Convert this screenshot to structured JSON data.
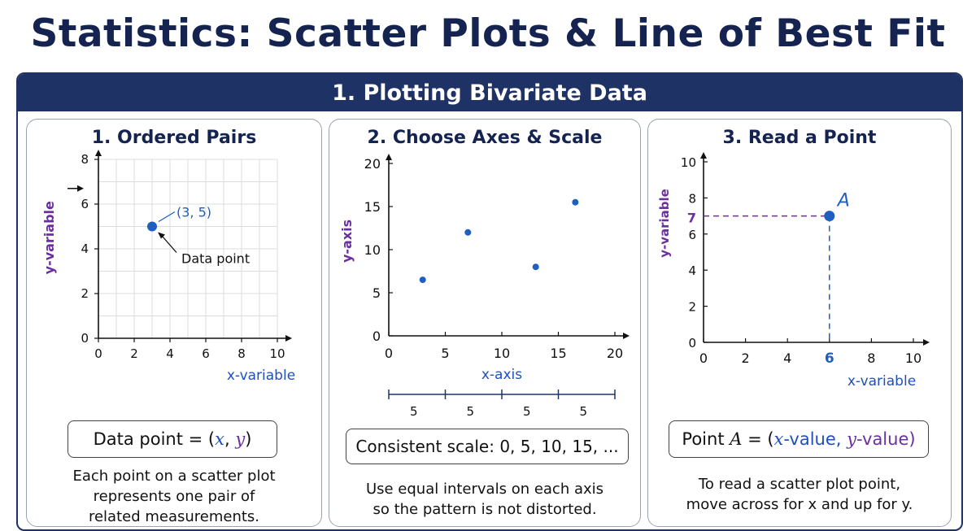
{
  "title": "Statistics: Scatter Plots & Line of Best Fit",
  "section": {
    "title": "1. Plotting Bivariate Data"
  },
  "panels": [
    {
      "title": "1. Ordered Pairs",
      "ylabel": "y-variable",
      "xlabel": "x-variable",
      "x_ticks": [
        "0",
        "2",
        "4",
        "6",
        "8",
        "10"
      ],
      "y_ticks": [
        "0",
        "2",
        "4",
        "6",
        "8"
      ],
      "point": {
        "x": 3,
        "y": 5,
        "label": "(3, 5)"
      },
      "annotation": "Data point",
      "formula": {
        "prefix": "Data point = ",
        "open": "(",
        "x": "x",
        "sep": ", ",
        "y": "y",
        "close": ")"
      },
      "caption_lines": [
        "Each point on a scatter plot",
        "represents one pair of",
        "related measurements."
      ]
    },
    {
      "title": "2. Choose Axes & Scale",
      "ylabel": "y-axis",
      "xlabel": "x-axis",
      "x_ticks": [
        "0",
        "5",
        "10",
        "15",
        "20"
      ],
      "y_ticks": [
        "0",
        "5",
        "10",
        "15",
        "20"
      ],
      "points": [
        {
          "x": 3,
          "y": 6.5
        },
        {
          "x": 7,
          "y": 12
        },
        {
          "x": 13,
          "y": 8
        },
        {
          "x": 16.5,
          "y": 15.5
        }
      ],
      "interval_labels": [
        "5",
        "5",
        "5",
        "5"
      ],
      "formula": {
        "text": "Consistent scale: 0, 5, 10, 15, ..."
      },
      "caption_lines": [
        "Use equal intervals on each axis",
        "so the pattern is not distorted."
      ]
    },
    {
      "title": "3. Read a Point",
      "ylabel": "y-variable",
      "xlabel": "x-variable",
      "x_ticks": [
        "0",
        "2",
        "4",
        "6",
        "8",
        "10"
      ],
      "y_ticks": [
        "0",
        "2",
        "4",
        "6",
        "8",
        "10"
      ],
      "point": {
        "x": 6,
        "y": 7,
        "label": "A"
      },
      "guide_x_label": "6",
      "guide_y_label": "7",
      "formula": {
        "prefix": "Point ",
        "name": "A",
        "eq": " = (",
        "x": "x",
        "xsuffix": "-value, ",
        "y": "y",
        "ysuffix": "-value)"
      },
      "caption_lines": [
        "To read a scatter plot point,",
        "move across for x and up for y."
      ]
    }
  ],
  "colors": {
    "title": "#14234f",
    "header": "#1f3266",
    "point": "#1f5fbf",
    "x_label": "#1f4fbf",
    "y_label": "#6b2fa0",
    "grid": "#dcdcdc"
  }
}
